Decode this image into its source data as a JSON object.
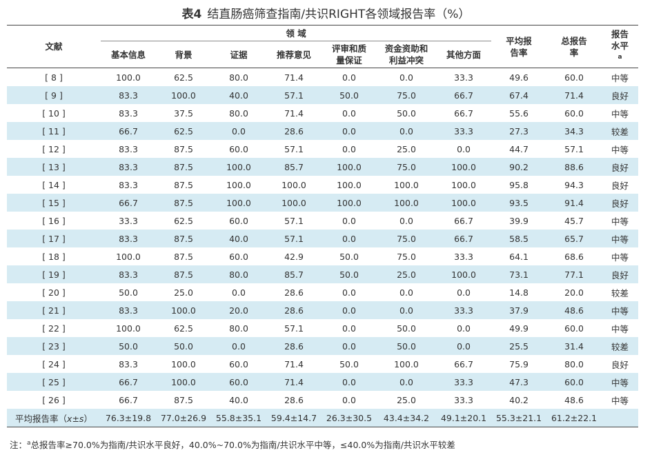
{
  "title": {
    "label": "表4",
    "text": "结直肠癌筛查指南/共识RIGHT各领域报告率（%）"
  },
  "headers": {
    "ref": "文献",
    "domain_group": "领 域",
    "domains": [
      "基本信息",
      "背景",
      "证据",
      "推荐意见",
      "评审和质量保证",
      "资金资助和利益冲突",
      "其他方面"
    ],
    "avg": "平均报告率",
    "total": "总报告率",
    "level": "报告水平",
    "level_sup": "a"
  },
  "rows": [
    [
      "[ 8 ]",
      "100.0",
      "62.5",
      "80.0",
      "71.4",
      "0.0",
      "0.0",
      "33.3",
      "49.6",
      "60.0",
      "中等"
    ],
    [
      "[ 9 ]",
      "83.3",
      "100.0",
      "40.0",
      "57.1",
      "50.0",
      "75.0",
      "66.7",
      "67.4",
      "71.4",
      "良好"
    ],
    [
      "[ 10 ]",
      "83.3",
      "37.5",
      "80.0",
      "71.4",
      "0.0",
      "50.0",
      "66.7",
      "55.6",
      "60.0",
      "中等"
    ],
    [
      "[ 11 ]",
      "66.7",
      "62.5",
      "0.0",
      "28.6",
      "0.0",
      "0.0",
      "33.3",
      "27.3",
      "34.3",
      "较差"
    ],
    [
      "[ 12 ]",
      "83.3",
      "87.5",
      "60.0",
      "57.1",
      "0.0",
      "25.0",
      "0.0",
      "44.7",
      "57.1",
      "中等"
    ],
    [
      "[ 13 ]",
      "83.3",
      "87.5",
      "100.0",
      "85.7",
      "100.0",
      "75.0",
      "100.0",
      "90.2",
      "88.6",
      "良好"
    ],
    [
      "[ 14 ]",
      "83.3",
      "87.5",
      "100.0",
      "100.0",
      "100.0",
      "100.0",
      "100.0",
      "95.8",
      "94.3",
      "良好"
    ],
    [
      "[ 15 ]",
      "66.7",
      "87.5",
      "100.0",
      "100.0",
      "100.0",
      "100.0",
      "100.0",
      "93.5",
      "91.4",
      "良好"
    ],
    [
      "[ 16 ]",
      "33.3",
      "62.5",
      "60.0",
      "57.1",
      "0.0",
      "0.0",
      "66.7",
      "39.9",
      "45.7",
      "中等"
    ],
    [
      "[ 17 ]",
      "83.3",
      "87.5",
      "40.0",
      "57.1",
      "0.0",
      "75.0",
      "66.7",
      "58.5",
      "65.7",
      "中等"
    ],
    [
      "[ 18 ]",
      "100.0",
      "87.5",
      "60.0",
      "42.9",
      "50.0",
      "75.0",
      "33.3",
      "64.1",
      "68.6",
      "中等"
    ],
    [
      "[ 19 ]",
      "83.3",
      "87.5",
      "80.0",
      "85.7",
      "50.0",
      "25.0",
      "100.0",
      "73.1",
      "77.1",
      "良好"
    ],
    [
      "[ 20 ]",
      "50.0",
      "25.0",
      "0.0",
      "28.6",
      "0.0",
      "0.0",
      "0.0",
      "14.8",
      "20.0",
      "较差"
    ],
    [
      "[ 21 ]",
      "83.3",
      "100.0",
      "20.0",
      "28.6",
      "0.0",
      "0.0",
      "33.3",
      "37.9",
      "48.6",
      "中等"
    ],
    [
      "[ 22 ]",
      "100.0",
      "62.5",
      "80.0",
      "57.1",
      "0.0",
      "50.0",
      "0.0",
      "49.9",
      "60.0",
      "中等"
    ],
    [
      "[ 23 ]",
      "50.0",
      "50.0",
      "0.0",
      "28.6",
      "0.0",
      "50.0",
      "0.0",
      "25.5",
      "31.4",
      "较差"
    ],
    [
      "[ 24 ]",
      "83.3",
      "100.0",
      "60.0",
      "71.4",
      "50.0",
      "100.0",
      "66.7",
      "75.9",
      "80.0",
      "良好"
    ],
    [
      "[ 25 ]",
      "66.7",
      "100.0",
      "60.0",
      "71.4",
      "0.0",
      "0.0",
      "33.3",
      "47.3",
      "60.0",
      "中等"
    ],
    [
      "[ 26 ]",
      "66.7",
      "87.5",
      "40.0",
      "28.6",
      "0.0",
      "25.0",
      "33.3",
      "40.2",
      "48.6",
      "中等"
    ]
  ],
  "footer": {
    "label_pre": "平均报告率（",
    "label_x": "x",
    "label_pm": "±s",
    "label_post": "）",
    "values": [
      "76.3±19.8",
      "77.0±26.9",
      "55.8±35.1",
      "59.4±14.7",
      "26.3±30.5",
      "43.4±34.2",
      "49.1±20.1",
      "55.3±21.1",
      "61.2±22.1",
      ""
    ]
  },
  "note": {
    "prefix": "注：",
    "sup": "a",
    "text": "总报告率≥70.0%为指南/共识水平良好，40.0%~70.0%为指南/共识水平中等，≤40.0%为指南/共识水平较差"
  }
}
